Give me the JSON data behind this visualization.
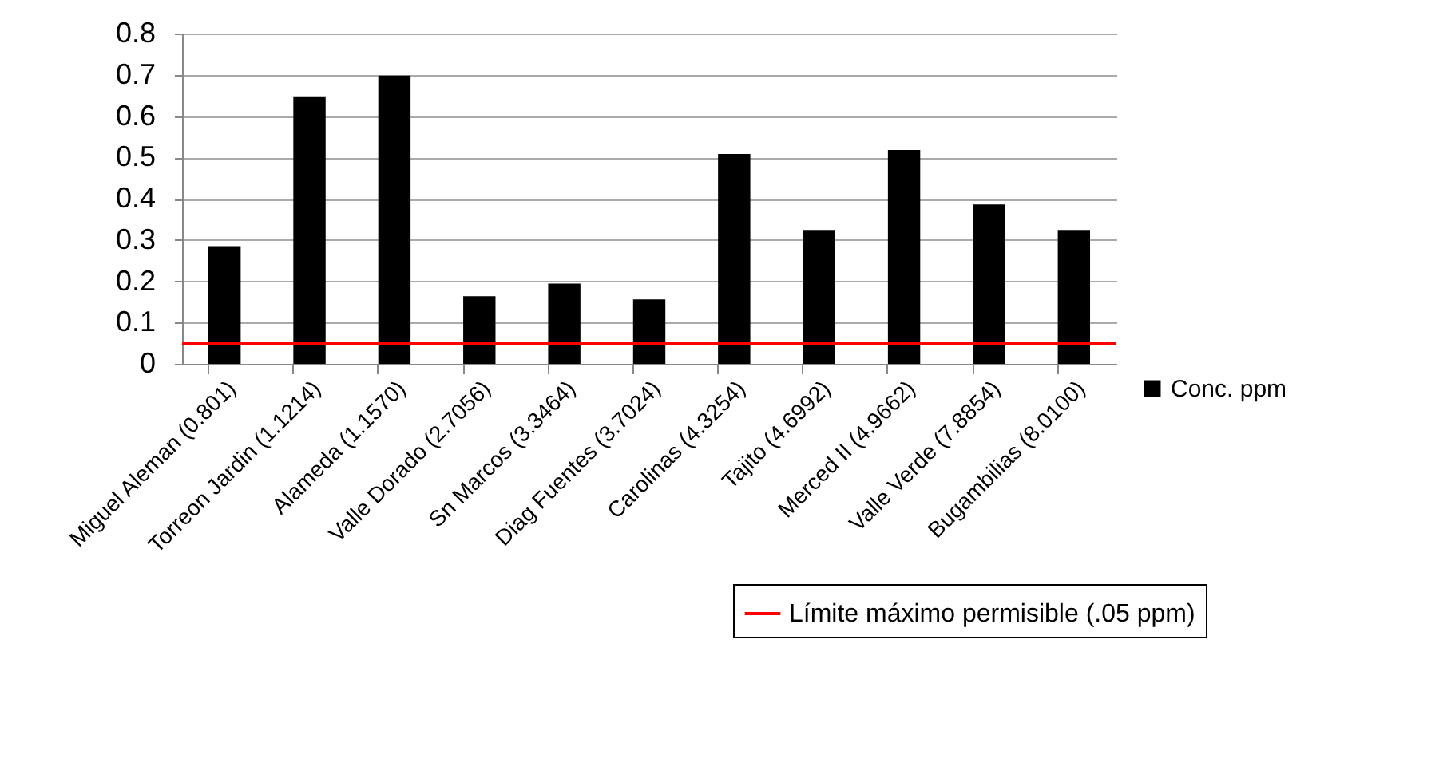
{
  "chart_data": {
    "type": "bar",
    "categories": [
      "Miguel Aleman (0.801)",
      "Torreon Jardin  (1.1214)",
      "Alameda (1.1570)",
      "Valle Dorado (2.7056)",
      "Sn Marcos (3.3464)",
      "Diag Fuentes (3.7024)",
      "Carolinas (4.3254)",
      "Tajito (4.6992)",
      "Merced II (4.9662)",
      "Valle Verde (7.8854)",
      "Bugambilias (8.0100)"
    ],
    "series": [
      {
        "name": "Conc. ppm",
        "color": "#000000",
        "values": [
          0.285,
          0.648,
          0.698,
          0.164,
          0.194,
          0.156,
          0.508,
          0.324,
          0.518,
          0.386,
          0.324
        ]
      }
    ],
    "ylim": [
      0,
      0.8
    ],
    "yticks": [
      0,
      0.1,
      0.2,
      0.3,
      0.4,
      0.5,
      0.6,
      0.7,
      0.8
    ],
    "grid": "y",
    "legend": "right",
    "ref_lines": [
      {
        "axis": "y",
        "value": 0.05,
        "label": "Límite máximo permisible (.05 ppm)",
        "color": "#ff0000",
        "line_style": "solid"
      }
    ]
  }
}
